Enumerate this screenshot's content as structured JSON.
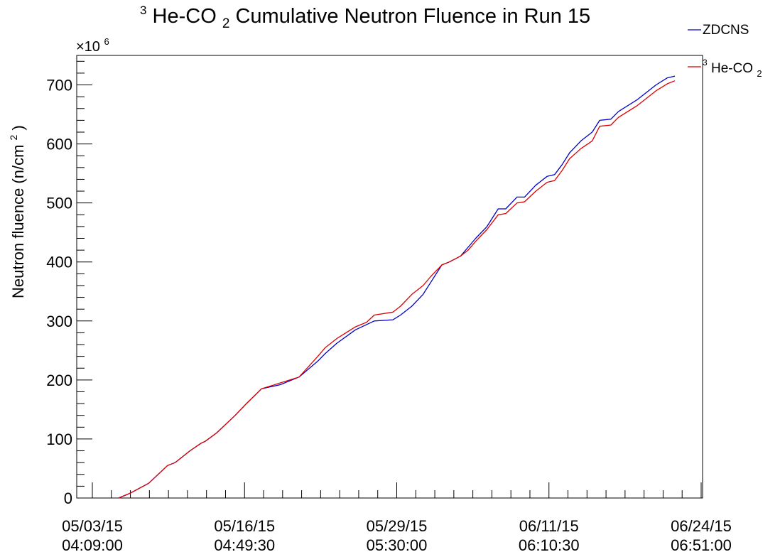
{
  "chart_data": {
    "type": "line",
    "title_prefix_sup": "3",
    "title_main": "He-CO",
    "title_sub": "2",
    "title_rest": " Cumulative Neutron Fluence in Run 15",
    "ylabel_main": "Neutron fluence (n/cm",
    "ylabel_sup": "2",
    "ylabel_close": ")",
    "multiplier_base": "×10",
    "multiplier_exp": "6",
    "ylim": [
      0,
      750
    ],
    "y_ticks": [
      "0",
      "100",
      "200",
      "300",
      "400",
      "500",
      "600",
      "700"
    ],
    "y_tick_values": [
      0,
      100,
      200,
      300,
      400,
      500,
      600,
      700
    ],
    "x_ticks_date": [
      "05/03/15",
      "05/16/15",
      "05/29/15",
      "06/11/15",
      "06/24/15"
    ],
    "x_ticks_time": [
      "04:09:00",
      "04:49:30",
      "05:30:00",
      "06:10:30",
      "06:51:00"
    ],
    "xlim_minutes": [
      0,
      162
    ],
    "x_tick_minutes": [
      0,
      40.5,
      81,
      121.5,
      162
    ],
    "legend": [
      {
        "name": "ZDCNS",
        "color": "#0000cc"
      },
      {
        "name_sup": "3",
        "name": "He-CO",
        "name_sub": "2",
        "color": "#dd0000"
      }
    ],
    "series": [
      {
        "name": "ZDCNS",
        "color": "#0000cc",
        "x": [
          7,
          10,
          15,
          20,
          22,
          24,
          26,
          29,
          30,
          33,
          35,
          38,
          41,
          45,
          50,
          55,
          60,
          62,
          65,
          70,
          75,
          80,
          82,
          85,
          88,
          90,
          93,
          95,
          98,
          100,
          102,
          105,
          108,
          110,
          113,
          115,
          118,
          121,
          123,
          125,
          127,
          130,
          133,
          135,
          138,
          140,
          145,
          150,
          153,
          155
        ],
        "values": [
          0,
          8,
          25,
          55,
          60,
          70,
          80,
          93,
          96,
          110,
          122,
          140,
          160,
          185,
          192,
          205,
          232,
          245,
          262,
          285,
          300,
          302,
          310,
          325,
          345,
          365,
          395,
          400,
          410,
          425,
          440,
          460,
          490,
          490,
          510,
          510,
          530,
          545,
          548,
          565,
          585,
          605,
          620,
          640,
          642,
          655,
          675,
          700,
          712,
          715
        ]
      },
      {
        "name": "3He-CO2",
        "color": "#dd0000",
        "x": [
          7,
          10,
          15,
          20,
          22,
          24,
          26,
          29,
          30,
          33,
          35,
          38,
          41,
          45,
          50,
          55,
          60,
          62,
          65,
          70,
          73,
          75,
          80,
          82,
          85,
          88,
          90,
          93,
          95,
          98,
          100,
          102,
          105,
          108,
          110,
          113,
          115,
          118,
          121,
          123,
          125,
          127,
          130,
          133,
          135,
          138,
          140,
          145,
          150,
          153,
          155
        ],
        "values": [
          0,
          8,
          25,
          55,
          60,
          70,
          80,
          93,
          96,
          110,
          122,
          140,
          160,
          185,
          195,
          205,
          240,
          255,
          270,
          290,
          298,
          310,
          315,
          325,
          345,
          360,
          375,
          395,
          400,
          410,
          420,
          435,
          455,
          480,
          482,
          500,
          502,
          520,
          535,
          538,
          555,
          575,
          592,
          605,
          630,
          632,
          645,
          665,
          690,
          702,
          707
        ]
      }
    ]
  }
}
